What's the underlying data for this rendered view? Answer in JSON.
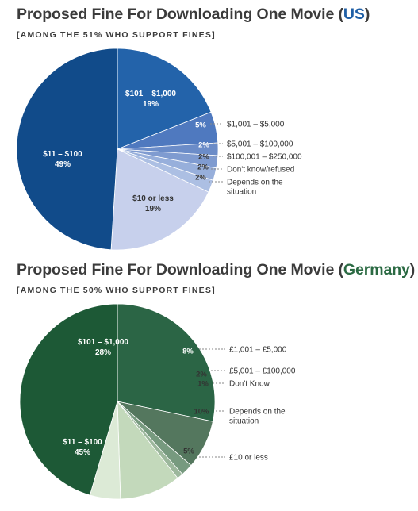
{
  "chart_data": [
    {
      "type": "pie",
      "title_prefix": "Proposed Fine For Downloading One Movie (",
      "title_highlight": "US",
      "title_suffix": ")",
      "subtitle": "[AMONG THE 51% WHO SUPPORT FINES]",
      "slices": [
        {
          "label": "$101 – $1,000",
          "value": 19,
          "value_label": "19%",
          "color": "#2363aa",
          "label_color": "#ffffff"
        },
        {
          "label": "$1,001 – $5,000",
          "value": 5,
          "value_label": "5%",
          "color": "#4f79bf",
          "label_color": "#ffffff"
        },
        {
          "label": "$5,001 – $100,000",
          "value": 2,
          "value_label": "2%",
          "color": "#6b8cc8",
          "label_color": "#ffffff"
        },
        {
          "label": "$100,001 – $250,000",
          "value": 2,
          "value_label": "2%",
          "color": "#7f9bd0",
          "label_color": "#333333"
        },
        {
          "label": "Don't know/refused",
          "value": 2,
          "value_label": "2%",
          "color": "#97afdb",
          "label_color": "#333333"
        },
        {
          "label": "Depends on the situation",
          "value": 2,
          "value_label": "2%",
          "color": "#acbfe3",
          "label_color": "#333333"
        },
        {
          "label": "$10 or less",
          "value": 19,
          "value_label": "19%",
          "color": "#c7d0ec",
          "label_color": "#333333"
        },
        {
          "label": "$11 – $100",
          "value": 49,
          "value_label": "49%",
          "color": "#114b8a",
          "label_color": "#ffffff"
        }
      ]
    },
    {
      "type": "pie",
      "title_prefix": "Proposed Fine For Downloading One Movie (",
      "title_highlight": "Germany",
      "title_suffix": ")",
      "subtitle": "[AMONG THE 50% WHO SUPPORT FINES]",
      "slices": [
        {
          "label": "$101 – $1,000",
          "value": 28,
          "value_label": "28%",
          "color": "#2b6545",
          "label_color": "#ffffff"
        },
        {
          "label": "£1,001 – £5,000",
          "value": 8,
          "value_label": "8%",
          "color": "#54775e",
          "label_color": "#ffffff"
        },
        {
          "label": "£5,001 – £100,000",
          "value": 2,
          "value_label": "2%",
          "color": "#779a7f",
          "label_color": "#333333"
        },
        {
          "label": "Don't Know",
          "value": 1,
          "value_label": "1%",
          "color": "#9cb79c",
          "label_color": "#333333"
        },
        {
          "label": "Depends on the situation",
          "value": 10,
          "value_label": "10%",
          "color": "#c3d9bb",
          "label_color": "#333333"
        },
        {
          "label": "£10 or less",
          "value": 5,
          "value_label": "5%",
          "color": "#dcead6",
          "label_color": "#333333"
        },
        {
          "label": "$11 – $100",
          "value": 45,
          "value_label": "45%",
          "color": "#1d5936",
          "label_color": "#ffffff"
        }
      ]
    }
  ]
}
